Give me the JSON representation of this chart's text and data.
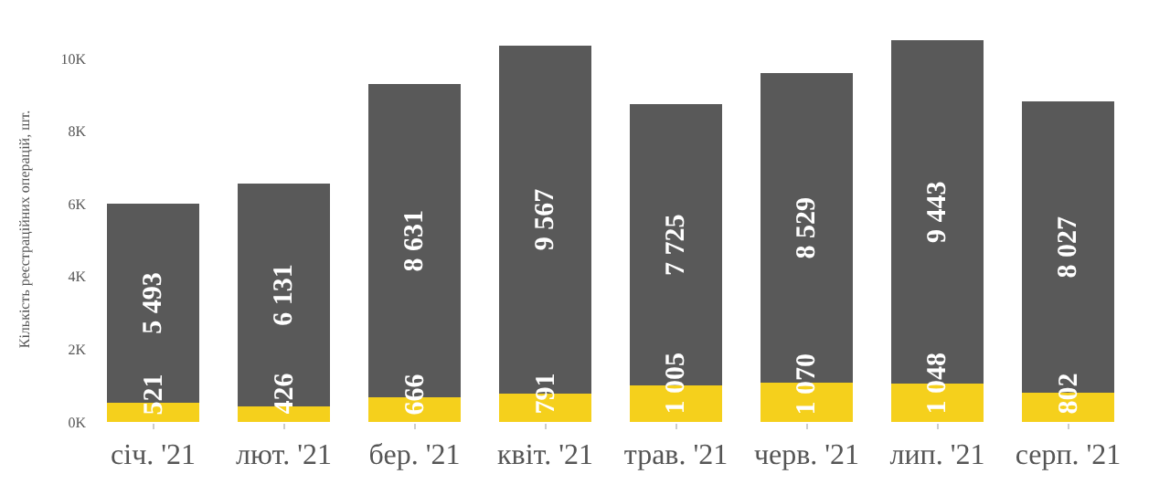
{
  "chart_data": {
    "type": "bar",
    "stacked": true,
    "ylabel": "Кількість реєстраційних операцій, шт.",
    "categories": [
      "січ. '21",
      "лют. '21",
      "бер. '21",
      "квіт. '21",
      "трав. '21",
      "черв. '21",
      "лип. '21",
      "серп. '21"
    ],
    "series": [
      {
        "color": "#f5d01c",
        "values": [
          521,
          426,
          666,
          791,
          1005,
          1070,
          1048,
          802
        ],
        "value_labels": [
          "521",
          "426",
          "666",
          "791",
          "1 005",
          "1 070",
          "1 048",
          "802"
        ]
      },
      {
        "color": "#595959",
        "values": [
          5493,
          6131,
          8631,
          9567,
          7725,
          8529,
          9443,
          8027
        ],
        "value_labels": [
          "5 493",
          "6 131",
          "8 631",
          "9 567",
          "7 725",
          "8 529",
          "9 443",
          "8 027"
        ]
      }
    ],
    "ylim": [
      0,
      10600
    ],
    "yticks": [
      {
        "value": 0,
        "label": "0K"
      },
      {
        "value": 2000,
        "label": "2K"
      },
      {
        "value": 4000,
        "label": "4K"
      },
      {
        "value": 6000,
        "label": "6K"
      },
      {
        "value": 8000,
        "label": "8K"
      },
      {
        "value": 10000,
        "label": "10K"
      }
    ],
    "legend": false
  }
}
